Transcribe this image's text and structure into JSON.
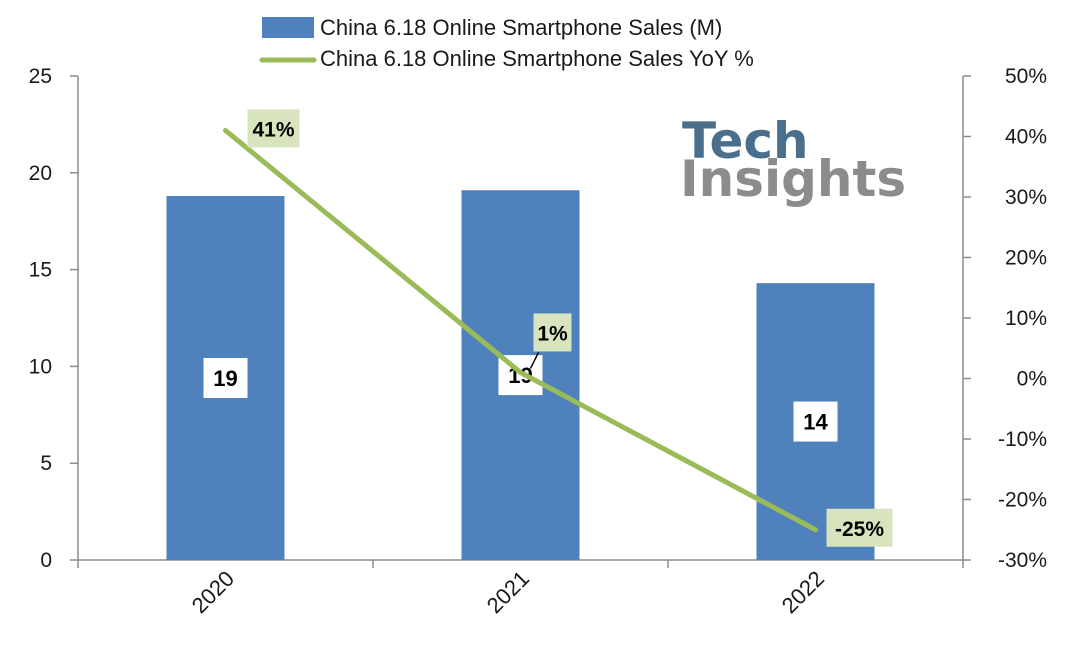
{
  "chart_data": {
    "type": "bar",
    "categories": [
      "2020",
      "2021",
      "2022"
    ],
    "series": [
      {
        "name": "China 6.18 Online Smartphone Sales (M)",
        "type": "bar",
        "axis": "left",
        "values": [
          18.8,
          19.1,
          14.3
        ],
        "labels": [
          "19",
          "19",
          "14"
        ],
        "color": "#4f81bd"
      },
      {
        "name": "China 6.18 Online Smartphone Sales YoY %",
        "type": "line",
        "axis": "right",
        "values": [
          41,
          1,
          -25
        ],
        "labels": [
          "41%",
          "1%",
          "-25%"
        ],
        "color": "#9bbb59"
      }
    ],
    "y_left": {
      "min": 0,
      "max": 25,
      "ticks": [
        "0",
        "5",
        "10",
        "15",
        "20",
        "25"
      ]
    },
    "y_right": {
      "min": -30,
      "max": 50,
      "ticks": [
        "-30%",
        "-20%",
        "-10%",
        "0%",
        "10%",
        "20%",
        "30%",
        "40%",
        "50%"
      ]
    },
    "legend_position": "top-center",
    "grid": false,
    "label_box_color": "#d7e4bd"
  },
  "watermark": {
    "line1": "Tech",
    "line2": "Insights",
    "color1": "#4a6f8c",
    "color2": "#8c8c8c"
  }
}
